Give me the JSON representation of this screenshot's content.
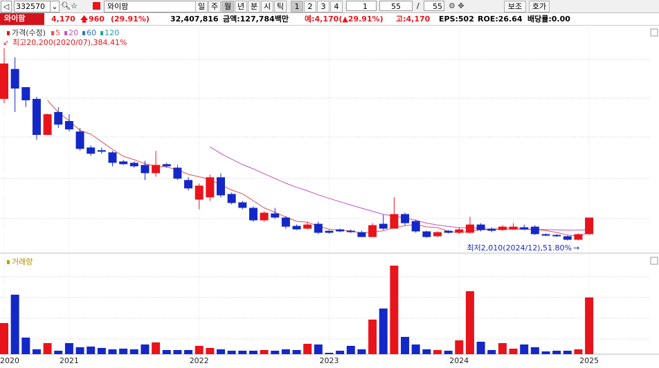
{
  "toolbar": {
    "code": "332570",
    "name": "와이팜",
    "period_buttons": [
      "일",
      "주",
      "월",
      "년",
      "분",
      "시",
      "틱"
    ],
    "number_buttons": [
      "1",
      "2",
      "3",
      "4"
    ],
    "count": "1",
    "visible": "55",
    "separator": "/",
    "total": "55",
    "aux": "보조",
    "quote": "호가"
  },
  "info": {
    "name": "와이팜",
    "price": "4,170",
    "change": "960",
    "change_rate": "(29.91%)",
    "volume": "32,407,816",
    "amount": "금액:127,784백만",
    "expected": "예:4,170(▲29.91%)",
    "high": "고:4,170",
    "eps": "EPS:502",
    "roe": "ROE:26.64",
    "dividend": "배당률:0.00"
  },
  "chart_data": {
    "type": "candlestick",
    "legend_title": "가격(수정)",
    "ma_periods": [
      5,
      20,
      60,
      120
    ],
    "ma_colors": [
      "#e05050",
      "#c050c0",
      "#3070c0",
      "#20a0a0"
    ],
    "high_label": "최고20,200(2020/07),384.41%",
    "low_label": "최저2,010(2024/12),51.80%",
    "up_color": "#e8141c",
    "down_color": "#1428c8",
    "ylim": [
      800,
      22400
    ],
    "categories": [
      "2020",
      null,
      null,
      null,
      null,
      null,
      "2021",
      null,
      null,
      null,
      null,
      null,
      null,
      null,
      null,
      null,
      null,
      null,
      "2022",
      null,
      null,
      null,
      null,
      null,
      null,
      null,
      null,
      null,
      null,
      null,
      "2023",
      null,
      null,
      null,
      null,
      null,
      null,
      null,
      null,
      null,
      null,
      null,
      "2024",
      null,
      null,
      null,
      null,
      null,
      null,
      null,
      null,
      null,
      null,
      null,
      "2025"
    ],
    "open": [
      15400,
      18230,
      16510,
      15400,
      11990,
      14160,
      13300,
      12310,
      10800,
      10540,
      10340,
      9480,
      9350,
      9150,
      8370,
      9220,
      8890,
      7720,
      5870,
      6080,
      7980,
      6400,
      5610,
      5090,
      3910,
      4560,
      4170,
      3380,
      3120,
      3580,
      2920,
      3050,
      2920,
      2790,
      2330,
      3580,
      3120,
      4500,
      3840,
      2860,
      2400,
      2920,
      2730,
      2730,
      3510,
      3120,
      2990,
      3050,
      3250,
      3310,
      2600,
      2530,
      2400,
      2070,
      2600
    ],
    "high": [
      20200,
      19340,
      16510,
      15600,
      14000,
      14620,
      13950,
      12640,
      11000,
      10800,
      10470,
      9610,
      9480,
      9550,
      10470,
      9350,
      9150,
      7980,
      7390,
      8240,
      8370,
      6530,
      5750,
      5220,
      4760,
      5090,
      4300,
      3510,
      3780,
      3780,
      2990,
      3120,
      3050,
      2920,
      3640,
      4430,
      6080,
      4630,
      3970,
      2920,
      2860,
      2990,
      3250,
      4240,
      3640,
      3250,
      3450,
      3640,
      3510,
      3450,
      2660,
      2600,
      2460,
      2660,
      4170
    ],
    "low": [
      15000,
      14160,
      14620,
      11530,
      11990,
      12640,
      12310,
      10500,
      10010,
      10210,
      9020,
      9150,
      8890,
      7720,
      8040,
      8890,
      7720,
      6730,
      4950,
      5750,
      6080,
      5420,
      4950,
      3780,
      3780,
      4040,
      3120,
      2990,
      3050,
      2600,
      2660,
      2790,
      2730,
      2330,
      2330,
      2990,
      3120,
      3450,
      2730,
      2260,
      2330,
      2660,
      2600,
      2660,
      2860,
      2790,
      2920,
      2990,
      2990,
      2530,
      2400,
      2330,
      2010,
      2010,
      2530
    ],
    "close": [
      18750,
      16380,
      15270,
      11990,
      13950,
      12970,
      12510,
      10670,
      10210,
      10400,
      9350,
      9220,
      9020,
      8370,
      9150,
      9020,
      7850,
      6930,
      7190,
      7980,
      6270,
      5550,
      5090,
      3910,
      4630,
      4170,
      3310,
      3050,
      3510,
      2730,
      2730,
      2860,
      2790,
      2330,
      3450,
      3120,
      4500,
      3640,
      2860,
      2330,
      2790,
      2730,
      3050,
      3510,
      2990,
      2920,
      3310,
      3310,
      3050,
      2600,
      2460,
      2400,
      2070,
      2600,
      4170
    ],
    "volume": {
      "title": "거래량",
      "ylim": [
        0,
        140
      ],
      "values": [
        45,
        86,
        24,
        7,
        16,
        5,
        16,
        10,
        11,
        9,
        7,
        8,
        7,
        14,
        17,
        6,
        6,
        6,
        12,
        9,
        7,
        5,
        5,
        5,
        6,
        5,
        7,
        6,
        15,
        14,
        2,
        5,
        12,
        7,
        50,
        66,
        128,
        25,
        14,
        7,
        6,
        5,
        20,
        91,
        18,
        6,
        16,
        8,
        14,
        10,
        4,
        5,
        5,
        7,
        82
      ]
    }
  }
}
